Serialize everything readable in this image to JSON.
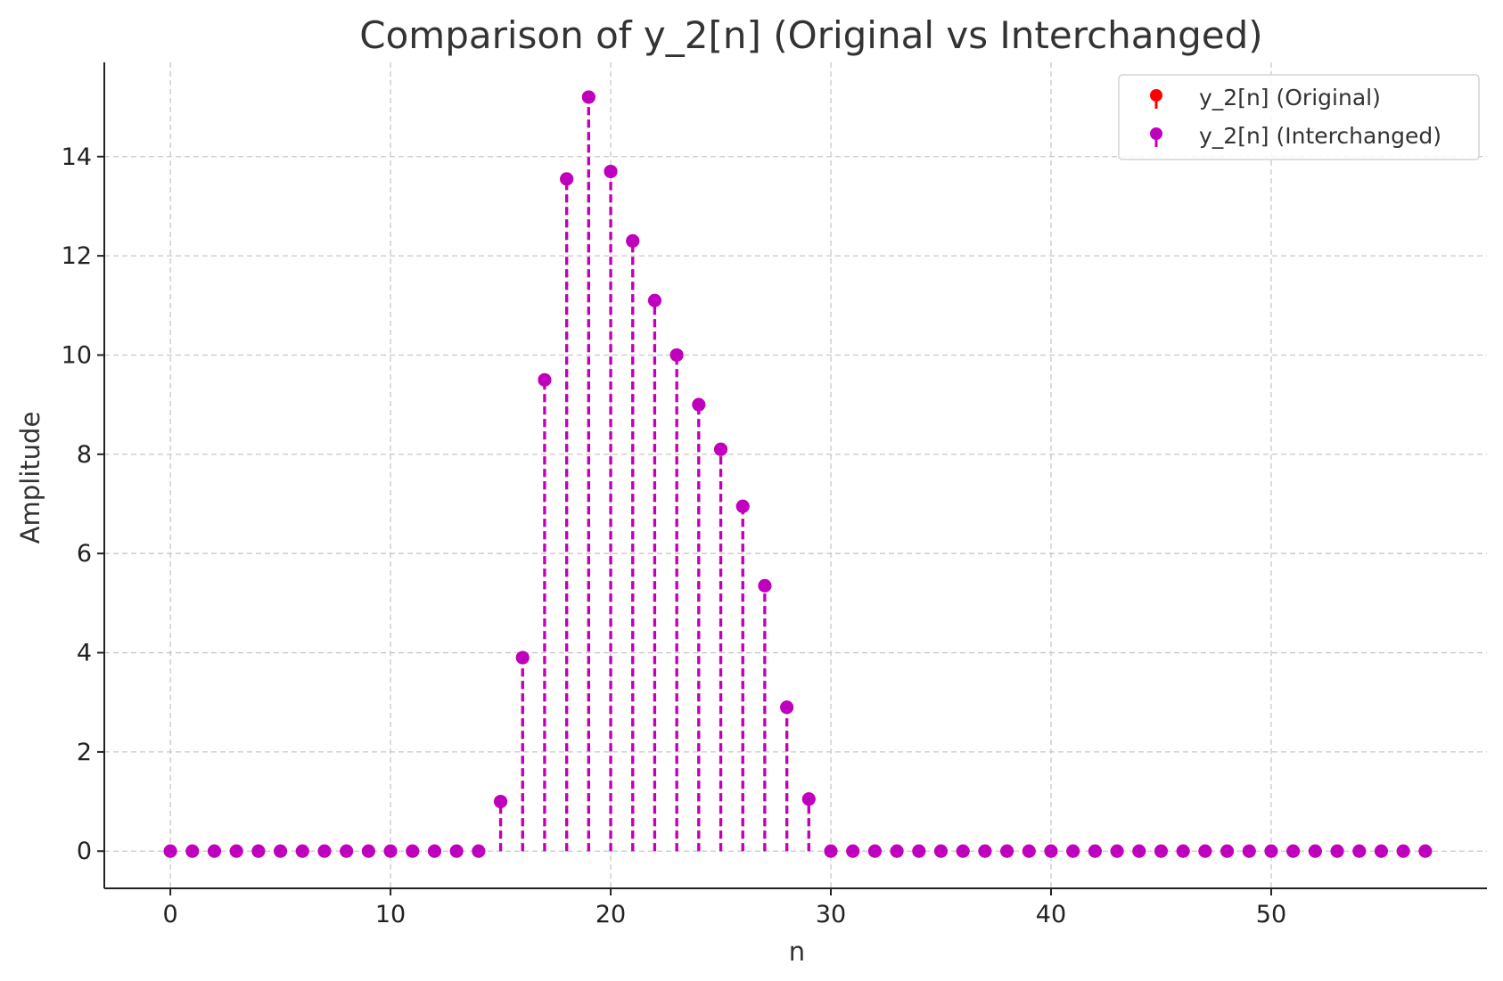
{
  "chart_data": {
    "type": "stem",
    "title": "Comparison of y_2[n] (Original vs Interchanged)",
    "xlabel": "n",
    "ylabel": "Amplitude",
    "xlim": [
      -3,
      59.8
    ],
    "ylim": [
      -0.75,
      15.9
    ],
    "xticks": [
      0,
      10,
      20,
      30,
      40,
      50
    ],
    "yticks": [
      0,
      2,
      4,
      6,
      8,
      10,
      12,
      14
    ],
    "grid": true,
    "legend_position": "top-right",
    "x": [
      0,
      1,
      2,
      3,
      4,
      5,
      6,
      7,
      8,
      9,
      10,
      11,
      12,
      13,
      14,
      15,
      16,
      17,
      18,
      19,
      20,
      21,
      22,
      23,
      24,
      25,
      26,
      27,
      28,
      29,
      30,
      31,
      32,
      33,
      34,
      35,
      36,
      37,
      38,
      39,
      40,
      41,
      42,
      43,
      44,
      45,
      46,
      47,
      48,
      49,
      50,
      51,
      52,
      53,
      54,
      55,
      56,
      57
    ],
    "series": [
      {
        "name": "y_2[n] (Original)",
        "color": "#ff0000",
        "values": [
          0,
          0,
          0,
          0,
          0,
          0,
          0,
          0,
          0,
          0,
          0,
          0,
          0,
          0,
          0,
          1.0,
          3.9,
          9.5,
          13.55,
          15.2,
          13.7,
          12.3,
          11.1,
          10.0,
          9.0,
          8.1,
          6.95,
          5.35,
          2.9,
          1.05,
          0,
          0,
          0,
          0,
          0,
          0,
          0,
          0,
          0,
          0,
          0,
          0,
          0,
          0,
          0,
          0,
          0,
          0,
          0,
          0,
          0,
          0,
          0,
          0,
          0,
          0,
          0,
          0
        ]
      },
      {
        "name": "y_2[n] (Interchanged)",
        "color": "#bf00bf",
        "values": [
          0,
          0,
          0,
          0,
          0,
          0,
          0,
          0,
          0,
          0,
          0,
          0,
          0,
          0,
          0,
          1.0,
          3.9,
          9.5,
          13.55,
          15.2,
          13.7,
          12.3,
          11.1,
          10.0,
          9.0,
          8.1,
          6.95,
          5.35,
          2.9,
          1.05,
          0,
          0,
          0,
          0,
          0,
          0,
          0,
          0,
          0,
          0,
          0,
          0,
          0,
          0,
          0,
          0,
          0,
          0,
          0,
          0,
          0,
          0,
          0,
          0,
          0,
          0,
          0,
          0
        ]
      }
    ]
  }
}
